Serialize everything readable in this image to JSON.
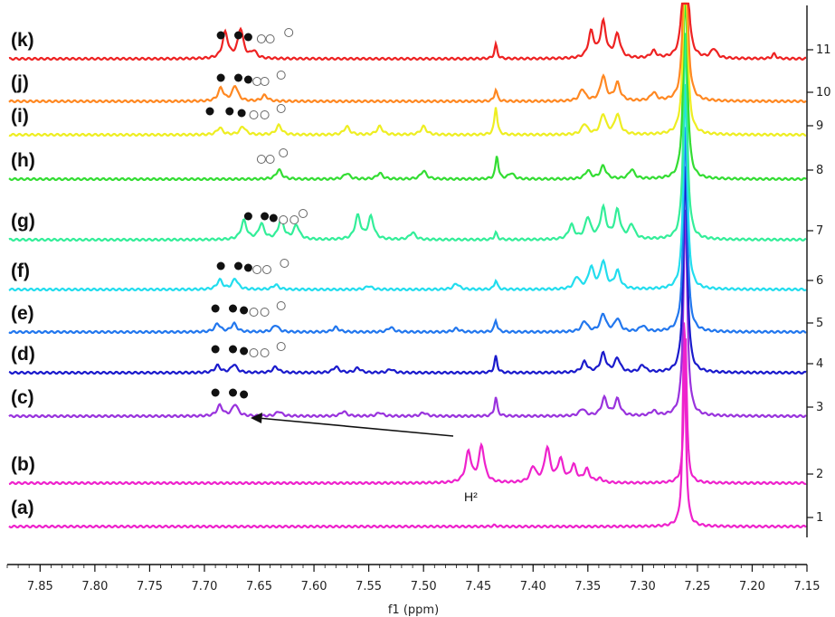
{
  "chart_data": {
    "type": "line",
    "title": "",
    "xlabel": "f1 (ppm)",
    "ylabel": "",
    "xlim": [
      7.88,
      7.15
    ],
    "x_ticks": [
      "7.85",
      "7.80",
      "7.75",
      "7.70",
      "7.65",
      "7.60",
      "7.55",
      "7.50",
      "7.45",
      "7.40",
      "7.35",
      "7.30",
      "7.25",
      "7.20",
      "7.15"
    ],
    "x_tick_values": [
      7.85,
      7.8,
      7.75,
      7.7,
      7.65,
      7.6,
      7.55,
      7.5,
      7.45,
      7.4,
      7.35,
      7.3,
      7.25,
      7.2,
      7.15
    ],
    "right_ticks": [
      "1",
      "2",
      "3",
      "4",
      "5",
      "6",
      "7",
      "8",
      "9",
      "10",
      "11"
    ],
    "annotation_label": "H²",
    "series": [
      {
        "label": "(a)",
        "index": 1,
        "color": "#ee22cc",
        "peaks": [
          {
            "x": 7.262,
            "h": 9.0,
            "w": 0.0015
          },
          {
            "x": 7.435,
            "h": 0.05,
            "w": 0.002
          }
        ]
      },
      {
        "label": "(b)",
        "index": 2,
        "color": "#ee22cc",
        "peaks": [
          {
            "x": 7.459,
            "h": 1.3,
            "w": 0.003
          },
          {
            "x": 7.447,
            "h": 1.55,
            "w": 0.003
          },
          {
            "x": 7.4,
            "h": 0.65,
            "w": 0.003
          },
          {
            "x": 7.387,
            "h": 1.45,
            "w": 0.003
          },
          {
            "x": 7.375,
            "h": 0.95,
            "w": 0.003
          },
          {
            "x": 7.363,
            "h": 0.7,
            "w": 0.003
          },
          {
            "x": 7.351,
            "h": 0.55,
            "w": 0.003
          },
          {
            "x": 7.339,
            "h": 0.15,
            "w": 0.003
          },
          {
            "x": 7.261,
            "h": 6.5,
            "w": 0.0015
          }
        ]
      },
      {
        "label": "(c)",
        "index": 3,
        "color": "#9933dd",
        "peaks": [
          {
            "x": 7.686,
            "h": 0.45,
            "w": 0.003
          },
          {
            "x": 7.672,
            "h": 0.5,
            "w": 0.003
          },
          {
            "x": 7.632,
            "h": 0.2,
            "w": 0.003
          },
          {
            "x": 7.573,
            "h": 0.2,
            "w": 0.003
          },
          {
            "x": 7.54,
            "h": 0.15,
            "w": 0.003
          },
          {
            "x": 7.5,
            "h": 0.15,
            "w": 0.003
          },
          {
            "x": 7.434,
            "h": 0.8,
            "w": 0.0015
          },
          {
            "x": 7.355,
            "h": 0.3,
            "w": 0.003
          },
          {
            "x": 7.335,
            "h": 0.75,
            "w": 0.003
          },
          {
            "x": 7.323,
            "h": 0.7,
            "w": 0.003
          },
          {
            "x": 7.29,
            "h": 0.2,
            "w": 0.003
          },
          {
            "x": 7.261,
            "h": 9.0,
            "w": 0.002
          }
        ]
      },
      {
        "label": "(d)",
        "index": 4,
        "color": "#1a1acc",
        "peaks": [
          {
            "x": 7.688,
            "h": 0.3,
            "w": 0.003
          },
          {
            "x": 7.673,
            "h": 0.35,
            "w": 0.003
          },
          {
            "x": 7.635,
            "h": 0.25,
            "w": 0.003
          },
          {
            "x": 7.58,
            "h": 0.25,
            "w": 0.003
          },
          {
            "x": 7.56,
            "h": 0.2,
            "w": 0.003
          },
          {
            "x": 7.53,
            "h": 0.15,
            "w": 0.003
          },
          {
            "x": 7.434,
            "h": 0.7,
            "w": 0.0015
          },
          {
            "x": 7.353,
            "h": 0.45,
            "w": 0.003
          },
          {
            "x": 7.336,
            "h": 0.8,
            "w": 0.003
          },
          {
            "x": 7.323,
            "h": 0.6,
            "w": 0.003
          },
          {
            "x": 7.3,
            "h": 0.3,
            "w": 0.003
          },
          {
            "x": 7.261,
            "h": 9.0,
            "w": 0.002
          }
        ]
      },
      {
        "label": "(e)",
        "index": 5,
        "color": "#2277ee",
        "peaks": [
          {
            "x": 7.688,
            "h": 0.35,
            "w": 0.003
          },
          {
            "x": 7.673,
            "h": 0.35,
            "w": 0.003
          },
          {
            "x": 7.635,
            "h": 0.3,
            "w": 0.003
          },
          {
            "x": 7.58,
            "h": 0.2,
            "w": 0.003
          },
          {
            "x": 7.53,
            "h": 0.2,
            "w": 0.003
          },
          {
            "x": 7.47,
            "h": 0.15,
            "w": 0.003
          },
          {
            "x": 7.434,
            "h": 0.5,
            "w": 0.0015
          },
          {
            "x": 7.353,
            "h": 0.45,
            "w": 0.003
          },
          {
            "x": 7.336,
            "h": 0.75,
            "w": 0.003
          },
          {
            "x": 7.323,
            "h": 0.55,
            "w": 0.003
          },
          {
            "x": 7.3,
            "h": 0.25,
            "w": 0.003
          },
          {
            "x": 7.261,
            "h": 9.0,
            "w": 0.002
          }
        ]
      },
      {
        "label": "(f)",
        "index": 6,
        "color": "#22ddee",
        "peaks": [
          {
            "x": 7.686,
            "h": 0.4,
            "w": 0.003
          },
          {
            "x": 7.672,
            "h": 0.45,
            "w": 0.003
          },
          {
            "x": 7.635,
            "h": 0.2,
            "w": 0.003
          },
          {
            "x": 7.55,
            "h": 0.15,
            "w": 0.003
          },
          {
            "x": 7.47,
            "h": 0.25,
            "w": 0.003
          },
          {
            "x": 7.434,
            "h": 0.4,
            "w": 0.0015
          },
          {
            "x": 7.36,
            "h": 0.5,
            "w": 0.003
          },
          {
            "x": 7.347,
            "h": 0.9,
            "w": 0.003
          },
          {
            "x": 7.336,
            "h": 1.15,
            "w": 0.003
          },
          {
            "x": 7.323,
            "h": 0.75,
            "w": 0.003
          },
          {
            "x": 7.261,
            "h": 9.0,
            "w": 0.002
          }
        ]
      },
      {
        "label": "(g)",
        "index": 7,
        "color": "#33ee99",
        "peaks": [
          {
            "x": 7.664,
            "h": 0.8,
            "w": 0.003
          },
          {
            "x": 7.648,
            "h": 0.65,
            "w": 0.003
          },
          {
            "x": 7.63,
            "h": 0.85,
            "w": 0.003
          },
          {
            "x": 7.616,
            "h": 0.6,
            "w": 0.003
          },
          {
            "x": 7.56,
            "h": 1.0,
            "w": 0.003
          },
          {
            "x": 7.548,
            "h": 0.95,
            "w": 0.003
          },
          {
            "x": 7.51,
            "h": 0.3,
            "w": 0.003
          },
          {
            "x": 7.434,
            "h": 0.3,
            "w": 0.0015
          },
          {
            "x": 7.365,
            "h": 0.6,
            "w": 0.003
          },
          {
            "x": 7.35,
            "h": 0.9,
            "w": 0.003
          },
          {
            "x": 7.336,
            "h": 1.3,
            "w": 0.003
          },
          {
            "x": 7.323,
            "h": 1.2,
            "w": 0.003
          },
          {
            "x": 7.31,
            "h": 0.6,
            "w": 0.003
          },
          {
            "x": 7.261,
            "h": 9.0,
            "w": 0.002
          }
        ]
      },
      {
        "label": "(h)",
        "index": 8,
        "color": "#33dd33",
        "peaks": [
          {
            "x": 7.632,
            "h": 0.4,
            "w": 0.003
          },
          {
            "x": 7.57,
            "h": 0.25,
            "w": 0.003
          },
          {
            "x": 7.54,
            "h": 0.25,
            "w": 0.003
          },
          {
            "x": 7.5,
            "h": 0.35,
            "w": 0.003
          },
          {
            "x": 7.433,
            "h": 1.0,
            "w": 0.0015
          },
          {
            "x": 7.42,
            "h": 0.25,
            "w": 0.003
          },
          {
            "x": 7.35,
            "h": 0.35,
            "w": 0.003
          },
          {
            "x": 7.336,
            "h": 0.55,
            "w": 0.003
          },
          {
            "x": 7.31,
            "h": 0.4,
            "w": 0.003
          },
          {
            "x": 7.261,
            "h": 9.0,
            "w": 0.002
          }
        ]
      },
      {
        "label": "(i)",
        "index": 9,
        "color": "#eeee22",
        "peaks": [
          {
            "x": 7.686,
            "h": 0.3,
            "w": 0.003
          },
          {
            "x": 7.665,
            "h": 0.35,
            "w": 0.003
          },
          {
            "x": 7.632,
            "h": 0.4,
            "w": 0.003
          },
          {
            "x": 7.57,
            "h": 0.35,
            "w": 0.003
          },
          {
            "x": 7.54,
            "h": 0.35,
            "w": 0.003
          },
          {
            "x": 7.5,
            "h": 0.35,
            "w": 0.003
          },
          {
            "x": 7.434,
            "h": 1.2,
            "w": 0.0015
          },
          {
            "x": 7.353,
            "h": 0.45,
            "w": 0.003
          },
          {
            "x": 7.336,
            "h": 0.85,
            "w": 0.003
          },
          {
            "x": 7.323,
            "h": 0.85,
            "w": 0.003
          },
          {
            "x": 7.261,
            "h": 9.0,
            "w": 0.002
          }
        ]
      },
      {
        "label": "(j)",
        "index": 10,
        "color": "#ff8822",
        "peaks": [
          {
            "x": 7.685,
            "h": 0.55,
            "w": 0.003
          },
          {
            "x": 7.672,
            "h": 0.65,
            "w": 0.003
          },
          {
            "x": 7.645,
            "h": 0.25,
            "w": 0.003
          },
          {
            "x": 7.434,
            "h": 0.5,
            "w": 0.0015
          },
          {
            "x": 7.355,
            "h": 0.5,
            "w": 0.003
          },
          {
            "x": 7.336,
            "h": 1.05,
            "w": 0.003
          },
          {
            "x": 7.323,
            "h": 0.75,
            "w": 0.003
          },
          {
            "x": 7.29,
            "h": 0.35,
            "w": 0.003
          },
          {
            "x": 7.261,
            "h": 9.0,
            "w": 0.002
          }
        ]
      },
      {
        "label": "(k)",
        "index": 11,
        "color": "#ee2222",
        "peaks": [
          {
            "x": 7.681,
            "h": 1.1,
            "w": 0.003
          },
          {
            "x": 7.667,
            "h": 1.25,
            "w": 0.003
          },
          {
            "x": 7.655,
            "h": 0.3,
            "w": 0.003
          },
          {
            "x": 7.434,
            "h": 0.6,
            "w": 0.0015
          },
          {
            "x": 7.347,
            "h": 1.1,
            "w": 0.003
          },
          {
            "x": 7.336,
            "h": 1.5,
            "w": 0.003
          },
          {
            "x": 7.323,
            "h": 1.0,
            "w": 0.003
          },
          {
            "x": 7.29,
            "h": 0.3,
            "w": 0.003
          },
          {
            "x": 7.261,
            "h": 9.0,
            "w": 0.002
          },
          {
            "x": 7.235,
            "h": 0.4,
            "w": 0.003
          },
          {
            "x": 7.18,
            "h": 0.2,
            "w": 0.002
          }
        ]
      }
    ],
    "markers": [
      {
        "series": "(k)",
        "filled": [
          7.685,
          7.669,
          7.66
        ],
        "open": [
          7.648,
          7.64,
          7.623
        ]
      },
      {
        "series": "(j)",
        "filled": [
          7.685,
          7.669,
          7.66
        ],
        "open": [
          7.652,
          7.645,
          7.63
        ]
      },
      {
        "series": "(i)",
        "filled": [
          7.695,
          7.677,
          7.666
        ],
        "open": [
          7.655,
          7.645,
          7.63
        ]
      },
      {
        "series": "(h)",
        "filled": [],
        "open": [
          7.648,
          7.64,
          7.628
        ]
      },
      {
        "series": "(g)",
        "filled": [
          7.66,
          7.645,
          7.637
        ],
        "open": [
          7.628,
          7.618,
          7.61
        ]
      },
      {
        "series": "(f)",
        "filled": [
          7.685,
          7.669,
          7.66
        ],
        "open": [
          7.652,
          7.643,
          7.627
        ]
      },
      {
        "series": "(e)",
        "filled": [
          7.69,
          7.674,
          7.664
        ],
        "open": [
          7.655,
          7.645,
          7.63
        ]
      },
      {
        "series": "(d)",
        "filled": [
          7.69,
          7.674,
          7.664
        ],
        "open": [
          7.655,
          7.645,
          7.63
        ]
      },
      {
        "series": "(c)",
        "filled": [
          7.69,
          7.674,
          7.664
        ],
        "open": []
      }
    ]
  }
}
